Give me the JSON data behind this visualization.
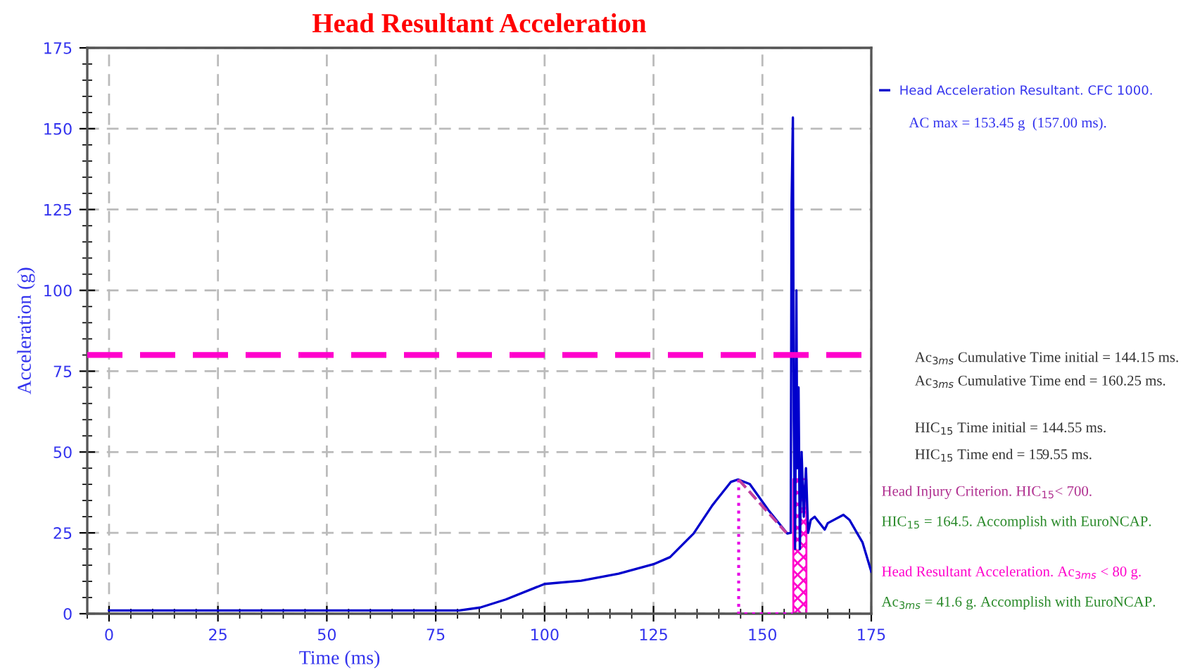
{
  "chart_data": {
    "type": "line",
    "title": "Head Resultant Acceleration",
    "xlabel": "Time (ms)",
    "ylabel": "Acceleration (g)",
    "xlim": [
      -5,
      175
    ],
    "xticks": [
      0,
      25,
      50,
      75,
      100,
      125,
      150,
      175
    ],
    "ylim": [
      0,
      175
    ],
    "yticks": [
      0,
      25,
      50,
      75,
      100,
      125,
      150,
      175
    ],
    "grid": true,
    "legend": "top right",
    "marker": "none",
    "series": [
      {
        "name": "Head Acceleration Resultant. CFC 1000.",
        "color": "#0000cc",
        "line_style": "solid",
        "x": [
          0,
          20,
          40,
          60,
          80.4,
          85.2,
          91.1,
          100,
          108.4,
          117,
          125,
          128.8,
          134.2,
          138.5,
          142.8,
          144.4,
          147.1,
          151.4,
          155.7,
          156.5,
          156.7,
          157,
          157.2,
          157.5,
          157.8,
          158,
          158.3,
          158.6,
          159,
          159.5,
          160,
          160.5,
          161.1,
          162,
          164.3,
          165,
          168.6,
          170,
          171.8,
          173,
          175
        ],
        "values": [
          1,
          1,
          1,
          1,
          1,
          1.9,
          4.4,
          9.2,
          10.2,
          12.4,
          15.3,
          17.5,
          24.8,
          33.5,
          40.8,
          41.5,
          40.1,
          32,
          24.8,
          25,
          127,
          153.45,
          60,
          20,
          100,
          45,
          70,
          20,
          50,
          30,
          45,
          25,
          29,
          30,
          26,
          28,
          30.6,
          29,
          24.8,
          22,
          13
        ]
      },
      {
        "color": "#e600e6",
        "line_style": "dotted",
        "x": [
          144.55,
          144.55,
          157
        ],
        "values": [
          41.5,
          0,
          0
        ]
      },
      {
        "color": "#c040a0",
        "line_style": "dashed",
        "x": [
          144.55,
          155.5
        ],
        "values": [
          41.5,
          25
        ]
      },
      {
        "type": "area",
        "color": "#ff00cc",
        "x": [
          157.1,
          160.1
        ],
        "values": [
          41.6,
          41.6
        ]
      }
    ],
    "ref_lines": [
      {
        "axis": "y",
        "value": 80,
        "color": "#ff00cc",
        "line_style": "dashed"
      }
    ],
    "annotations": [
      "AC max = 153.45 g  (157.00 ms).",
      "Ac$_{3ms}$ Cumulative Time initial = 144.15 ms.",
      "Ac$_{3ms}$ Cumulative Time end = 160.25 ms.",
      "HIC$_{15}$ Time initial = 144.55 ms.",
      "HIC$_{15}$ Time end = 159.55 ms.",
      "Head Injury Criterion. HIC$_{15}$< 700.",
      "HIC$_{15}$ = 164.5. Accomplish with EuroNCAP.",
      "Head Resultant Acceleration. Ac$_{3ms}$ < 80 g.",
      "Ac$_{3ms}$ = 41.6 g. Accomplish with EuroNCAP."
    ]
  }
}
